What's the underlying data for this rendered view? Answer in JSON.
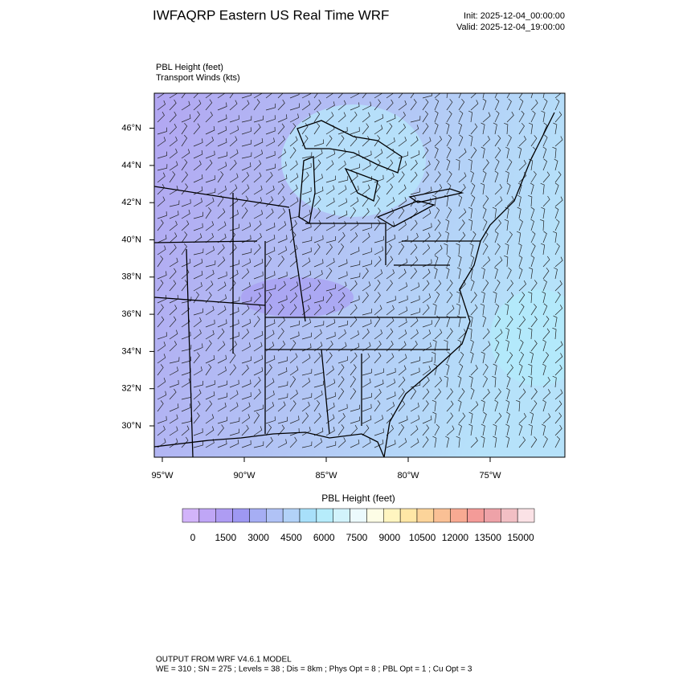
{
  "header": {
    "title": "IWFAQRP Eastern US Real Time WRF",
    "init": "Init: 2025-12-04_00:00:00",
    "valid": "Valid: 2025-12-04_19:00:00"
  },
  "plot": {
    "field_label": "PBL Height   (feet)",
    "wind_label": "Transport Winds   (kts)",
    "lat_labels": [
      "30°N",
      "32°N",
      "34°N",
      "36°N",
      "38°N",
      "40°N",
      "42°N",
      "44°N",
      "46°N"
    ],
    "lon_labels": [
      "95°W",
      "90°W",
      "85°W",
      "80°W",
      "75°W"
    ]
  },
  "colorbar": {
    "title": "PBL Height  (feet)",
    "ticks": [
      0,
      1500,
      3000,
      4500,
      6000,
      7500,
      9000,
      10500,
      12000,
      13500,
      15000
    ],
    "colors": [
      "#d2b4fa",
      "#bfa6f6",
      "#ae9cf3",
      "#9e98f2",
      "#a6aef4",
      "#b0c2f6",
      "#b2d2f8",
      "#a8e0fa",
      "#b6ecfb",
      "#d2f3fc",
      "#ecfafd",
      "#fdfde6",
      "#fff5c0",
      "#ffe7a6",
      "#fcd49a",
      "#fac095",
      "#f8aa92",
      "#f49b98",
      "#eea2a8",
      "#f2bfc4",
      "#fbe2e6"
    ]
  },
  "footer": {
    "model": "OUTPUT FROM WRF V4.6.1 MODEL",
    "settings": "WE = 310 ; SN = 275 ; Levels = 38 ; Dis = 8km ; Phys Opt = 8 ; PBL Opt = 1 ; Cu Opt = 3"
  }
}
